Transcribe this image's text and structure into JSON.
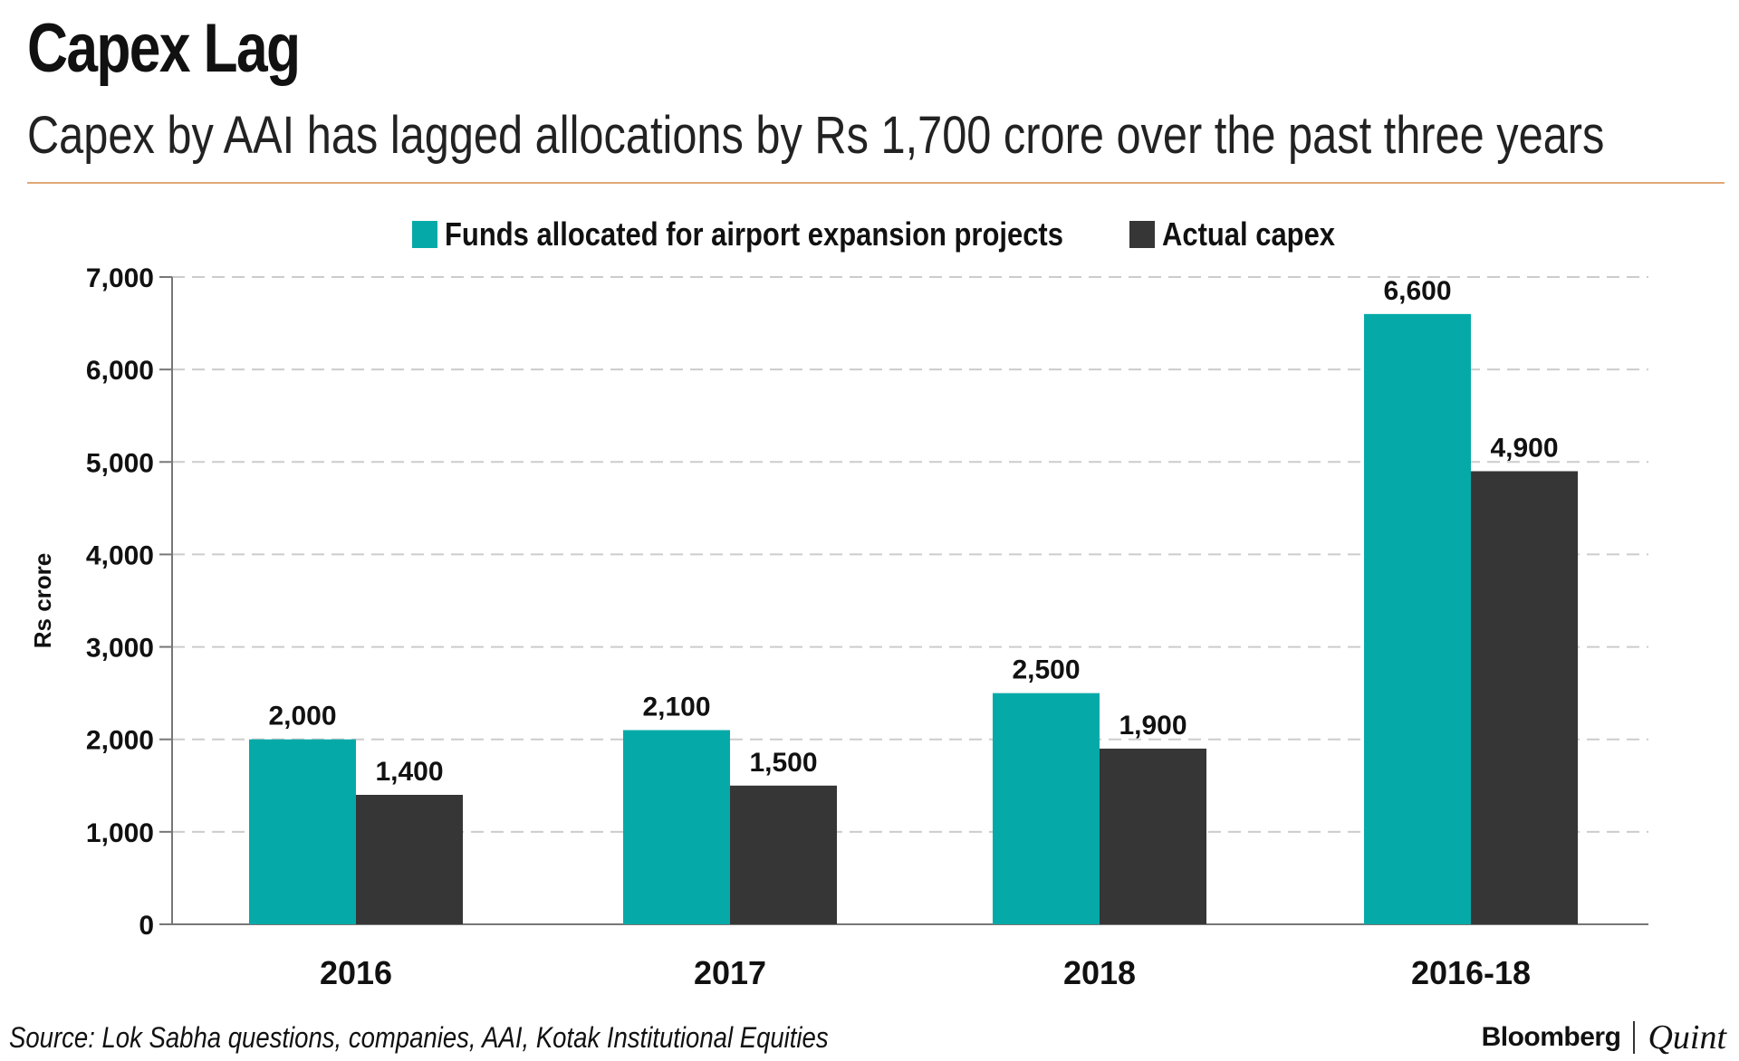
{
  "title": "Capex Lag",
  "subtitle": "Capex by AAI has lagged allocations by Rs 1,700 crore over the past three years",
  "source": "Source: Lok Sabha questions, companies, AAI, Kotak Institutional Equities",
  "brand": {
    "primary": "Bloomberg",
    "secondary": "Quint"
  },
  "colors": {
    "allocated": "#05aaa8",
    "actual": "#363636",
    "rule": "#e0a877",
    "grid": "#cccccc"
  },
  "chart_data": {
    "type": "bar",
    "title": "Capex Lag",
    "ylabel": "Rs crore",
    "xlabel": "",
    "categories": [
      "2016",
      "2017",
      "2018",
      "2016-18"
    ],
    "series": [
      {
        "name": "Funds allocated for airport expansion projects",
        "values": [
          2000,
          2100,
          2500,
          6600
        ],
        "labels": [
          "2,000",
          "2,100",
          "2,500",
          "6,600"
        ]
      },
      {
        "name": "Actual capex",
        "values": [
          1400,
          1500,
          1900,
          4900
        ],
        "labels": [
          "1,400",
          "1,500",
          "1,900",
          "4,900"
        ]
      }
    ],
    "ylim": [
      0,
      7000
    ],
    "yticks": [
      0,
      1000,
      2000,
      3000,
      4000,
      5000,
      6000,
      7000
    ],
    "ytick_labels": [
      "0",
      "1,000",
      "2,000",
      "3,000",
      "4,000",
      "5,000",
      "6,000",
      "7,000"
    ],
    "legend": "top-center",
    "grid": true
  }
}
